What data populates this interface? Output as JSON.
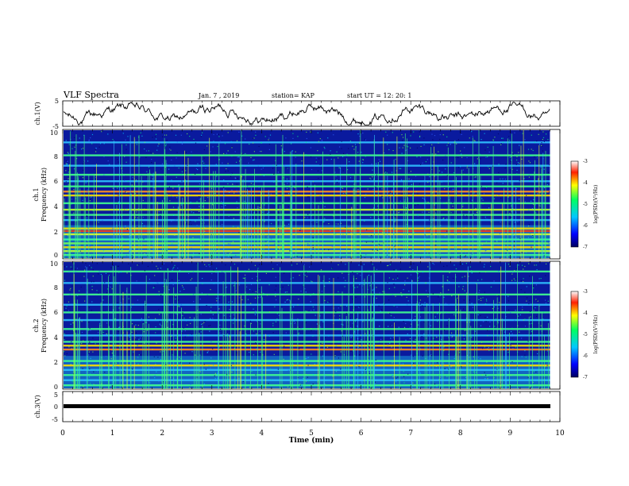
{
  "header": {
    "title": "VLF Spectra",
    "date": "Jan. 7 , 2019",
    "station": "station= KAP",
    "start": "start UT = 12: 20: 1"
  },
  "chart_data": [
    {
      "type": "line",
      "panel": "ch1-waveform",
      "ylabel": "ch.1(V)",
      "ylim": [
        -5,
        5
      ],
      "yticks": [
        "5",
        "-5"
      ],
      "xlim": [
        0,
        10
      ],
      "color": "#000000"
    },
    {
      "type": "heatmap",
      "panel": "ch1-spectrogram",
      "ylabel_top": "ch.1",
      "ylabel": "Frequency (kHz)",
      "ylim": [
        0,
        10
      ],
      "yticks": [
        "0",
        "2",
        "4",
        "6",
        "8",
        "10"
      ],
      "xlim": [
        0,
        10
      ],
      "data_end_min": 9.8,
      "bands_khz": [
        {
          "f": 0.3,
          "c": "#40ff90"
        },
        {
          "f": 0.6,
          "c": "#c8ff30"
        },
        {
          "f": 0.9,
          "c": "#ffe000"
        },
        {
          "f": 1.2,
          "c": "#80ff50"
        },
        {
          "f": 1.5,
          "c": "#40ffa0"
        },
        {
          "f": 1.9,
          "c": "#e0ff30"
        },
        {
          "f": 2.15,
          "c": "#ff3a10"
        },
        {
          "f": 2.35,
          "c": "#ffe000"
        },
        {
          "f": 3.0,
          "c": "#30c0ff"
        },
        {
          "f": 3.4,
          "c": "#40ff90"
        },
        {
          "f": 3.8,
          "c": "#c8ff30"
        },
        {
          "f": 4.3,
          "c": "#40ff90"
        },
        {
          "f": 4.9,
          "c": "#ffe000"
        },
        {
          "f": 5.2,
          "c": "#ff9020"
        },
        {
          "f": 5.6,
          "c": "#40ff90"
        },
        {
          "f": 6.0,
          "c": "#30c0ff"
        },
        {
          "f": 6.5,
          "c": "#40ff90"
        },
        {
          "f": 7.2,
          "c": "#30c0ff"
        },
        {
          "f": 8.0,
          "c": "#40ff90"
        },
        {
          "f": 9.0,
          "c": "#30c0ff"
        }
      ],
      "colorbar": {
        "label": "log(PSD)(V²/Hz)",
        "range": [
          -7,
          -3
        ],
        "ticks": [
          "-3",
          "-4",
          "-5",
          "-6",
          "-7"
        ]
      }
    },
    {
      "type": "heatmap",
      "panel": "ch2-spectrogram",
      "ylabel_top": "ch.2",
      "ylabel": "Frequency (kHz)",
      "ylim": [
        0,
        10
      ],
      "yticks": [
        "0",
        "2",
        "4",
        "6",
        "8",
        "10"
      ],
      "xlim": [
        0,
        10
      ],
      "data_end_min": 9.8,
      "bands_khz": [
        {
          "f": 0.3,
          "c": "#40ff90"
        },
        {
          "f": 0.7,
          "c": "#30c0ff"
        },
        {
          "f": 1.1,
          "c": "#40ff90"
        },
        {
          "f": 1.5,
          "c": "#30c0ff"
        },
        {
          "f": 1.85,
          "c": "#ffe000"
        },
        {
          "f": 2.2,
          "c": "#40ff90"
        },
        {
          "f": 3.1,
          "c": "#ff9020"
        },
        {
          "f": 3.4,
          "c": "#ffe000"
        },
        {
          "f": 3.7,
          "c": "#40ff90"
        },
        {
          "f": 4.2,
          "c": "#30c0ff"
        },
        {
          "f": 4.7,
          "c": "#40ff90"
        },
        {
          "f": 5.4,
          "c": "#30c0ff"
        },
        {
          "f": 6.0,
          "c": "#40ff90"
        },
        {
          "f": 6.6,
          "c": "#30c0ff"
        },
        {
          "f": 7.4,
          "c": "#40ff90"
        },
        {
          "f": 8.3,
          "c": "#30c0ff"
        },
        {
          "f": 9.2,
          "c": "#40ff90"
        }
      ],
      "colorbar": {
        "label": "log(PSD)(V²/Hz)",
        "range": [
          -7,
          -3
        ],
        "ticks": [
          "-3",
          "-4",
          "-5",
          "-6",
          "-7"
        ]
      }
    },
    {
      "type": "line",
      "panel": "ch3-waveform",
      "ylabel": "ch.3(V)",
      "ylim": [
        -5,
        5
      ],
      "yticks": [
        "5",
        "0",
        "-5"
      ],
      "xlim": [
        0,
        10
      ],
      "xlabel": "Time (min)",
      "xticks": [
        "0",
        "1",
        "2",
        "3",
        "4",
        "5",
        "6",
        "7",
        "8",
        "9",
        "10"
      ],
      "color": "#000000"
    }
  ]
}
